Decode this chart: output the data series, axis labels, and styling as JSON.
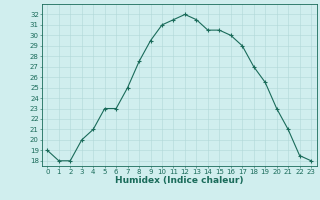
{
  "x": [
    0,
    1,
    2,
    3,
    4,
    5,
    6,
    7,
    8,
    9,
    10,
    11,
    12,
    13,
    14,
    15,
    16,
    17,
    18,
    19,
    20,
    21,
    22,
    23
  ],
  "y": [
    19,
    18,
    18,
    20,
    21,
    23,
    23,
    25,
    27.5,
    29.5,
    31,
    31.5,
    32,
    31.5,
    30.5,
    30.5,
    30,
    29,
    27,
    25.5,
    23,
    21,
    18.5,
    18
  ],
  "line_color": "#1a6b5a",
  "marker": "+",
  "marker_size": 3,
  "background_color": "#d0eeee",
  "grid_color": "#b0d8d8",
  "xlabel": "Humidex (Indice chaleur)",
  "xlim": [
    -0.5,
    23.5
  ],
  "ylim": [
    17.5,
    33
  ],
  "yticks": [
    18,
    19,
    20,
    21,
    22,
    23,
    24,
    25,
    26,
    27,
    28,
    29,
    30,
    31,
    32
  ],
  "xticks": [
    0,
    1,
    2,
    3,
    4,
    5,
    6,
    7,
    8,
    9,
    10,
    11,
    12,
    13,
    14,
    15,
    16,
    17,
    18,
    19,
    20,
    21,
    22,
    23
  ],
  "tick_color": "#1a6b5a",
  "label_fontsize": 6.5,
  "tick_fontsize": 5.0
}
